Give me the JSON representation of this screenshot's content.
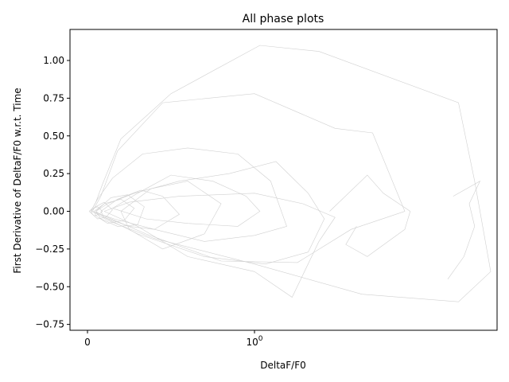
{
  "chart_data": {
    "type": "line",
    "title": "All phase plots",
    "xlabel": "DeltaF/F0",
    "ylabel": "First Derivative of DeltaF/F0 w.r.t. Time",
    "x_scale": "symlog",
    "x_ticks": [
      {
        "value": 0,
        "label": "0"
      },
      {
        "value": 1,
        "label": "10^0"
      }
    ],
    "y_ticks": [
      {
        "value": -0.75,
        "label": "−0.75"
      },
      {
        "value": -0.5,
        "label": "−0.50"
      },
      {
        "value": -0.25,
        "label": "−0.25"
      },
      {
        "value": 0.0,
        "label": "0.00"
      },
      {
        "value": 0.25,
        "label": "0.25"
      },
      {
        "value": 0.5,
        "label": "0.50"
      },
      {
        "value": 0.75,
        "label": "0.75"
      },
      {
        "value": 1.0,
        "label": "1.00"
      }
    ],
    "ylim": [
      -0.8,
      1.2
    ],
    "grid": false,
    "line_color": "#d0d0d0",
    "series": [
      {
        "x": [
          0.02,
          0.05,
          0.09,
          0.2,
          0.5,
          1.05,
          1.6,
          2.9,
          3.05,
          3.2,
          2.9,
          2.0,
          1.0,
          0.4,
          0.12,
          0.03
        ],
        "y": [
          0.0,
          0.06,
          0.18,
          0.48,
          0.78,
          1.1,
          1.06,
          0.72,
          0.2,
          -0.4,
          -0.6,
          -0.55,
          -0.35,
          -0.18,
          -0.06,
          0.0
        ]
      },
      {
        "x": [
          0.03,
          0.08,
          0.18,
          0.45,
          1.0,
          1.75,
          2.1,
          2.4,
          1.9,
          1.4,
          0.8,
          0.35,
          0.1,
          0.03
        ],
        "y": [
          0.0,
          0.1,
          0.4,
          0.72,
          0.78,
          0.55,
          0.52,
          0.0,
          -0.12,
          -0.34,
          -0.33,
          -0.15,
          -0.03,
          0.0
        ]
      },
      {
        "x": [
          0.02,
          0.06,
          0.15,
          0.33,
          0.6,
          0.9,
          1.15,
          1.3,
          1.0,
          0.7,
          0.4,
          0.16,
          0.05,
          0.02
        ],
        "y": [
          0.0,
          0.08,
          0.22,
          0.38,
          0.42,
          0.38,
          0.2,
          -0.1,
          -0.16,
          -0.2,
          -0.12,
          -0.05,
          -0.01,
          0.0
        ]
      },
      {
        "x": [
          0.05,
          0.12,
          0.28,
          0.55,
          0.85,
          1.2,
          1.5,
          1.65,
          1.5,
          1.1,
          0.7,
          0.3,
          0.1,
          0.05
        ],
        "y": [
          0.0,
          0.05,
          0.12,
          0.2,
          0.25,
          0.33,
          0.12,
          -0.05,
          -0.27,
          -0.35,
          -0.3,
          -0.15,
          -0.04,
          0.0
        ]
      },
      {
        "x": [
          0.1,
          0.25,
          0.55,
          1.0,
          1.45,
          1.75,
          1.6,
          1.35,
          1.0,
          0.6,
          0.3,
          0.1
        ],
        "y": [
          0.0,
          0.06,
          0.1,
          0.12,
          0.05,
          -0.04,
          -0.2,
          -0.57,
          -0.4,
          -0.3,
          -0.1,
          0.0
        ]
      },
      {
        "x": [
          1.7,
          2.05,
          2.2,
          2.45,
          2.4,
          2.05,
          1.85,
          1.95
        ],
        "y": [
          0.0,
          0.24,
          0.12,
          0.0,
          -0.12,
          -0.3,
          -0.22,
          -0.1
        ]
      },
      {
        "x": [
          2.85,
          3.1,
          3.0,
          3.05,
          2.95,
          2.8
        ],
        "y": [
          0.1,
          0.2,
          0.05,
          -0.1,
          -0.3,
          -0.45
        ]
      },
      {
        "x": [
          0.15,
          0.3,
          0.5,
          0.75,
          0.95,
          1.05,
          0.9,
          0.6,
          0.35,
          0.15
        ],
        "y": [
          0.02,
          0.12,
          0.24,
          0.2,
          0.1,
          0.0,
          -0.1,
          -0.08,
          -0.05,
          0.02
        ]
      },
      {
        "x": [
          0.08,
          0.18,
          0.32,
          0.45,
          0.55,
          0.4,
          0.25,
          0.1,
          0.08
        ],
        "y": [
          0.0,
          0.08,
          0.14,
          0.1,
          -0.02,
          -0.12,
          -0.1,
          -0.04,
          0.0
        ]
      },
      {
        "x": [
          0.04,
          0.1,
          0.2,
          0.28,
          0.22,
          0.12,
          0.05,
          0.04
        ],
        "y": [
          0.0,
          0.05,
          0.08,
          0.02,
          -0.06,
          -0.08,
          -0.03,
          0.0
        ]
      },
      {
        "x": [
          0.02,
          0.05,
          0.1,
          0.15,
          0.11,
          0.06,
          0.03,
          0.02
        ],
        "y": [
          0.0,
          0.03,
          0.06,
          0.01,
          -0.04,
          -0.05,
          -0.02,
          0.0
        ]
      },
      {
        "x": [
          0.01,
          0.03,
          0.06,
          0.09,
          0.07,
          0.04,
          0.02,
          0.01
        ],
        "y": [
          0.0,
          0.02,
          0.03,
          0.0,
          -0.02,
          -0.03,
          -0.01,
          0.0
        ]
      },
      {
        "x": [
          0.2,
          0.38,
          0.6,
          0.8,
          0.7,
          0.45,
          0.25,
          0.2
        ],
        "y": [
          0.0,
          0.15,
          0.2,
          0.05,
          -0.15,
          -0.25,
          -0.12,
          0.0
        ]
      },
      {
        "x": [
          0.05,
          0.14,
          0.24,
          0.34,
          0.3,
          0.18,
          0.08,
          0.05
        ],
        "y": [
          0.0,
          0.09,
          0.11,
          0.03,
          -0.09,
          -0.1,
          -0.05,
          0.0
        ]
      }
    ]
  }
}
